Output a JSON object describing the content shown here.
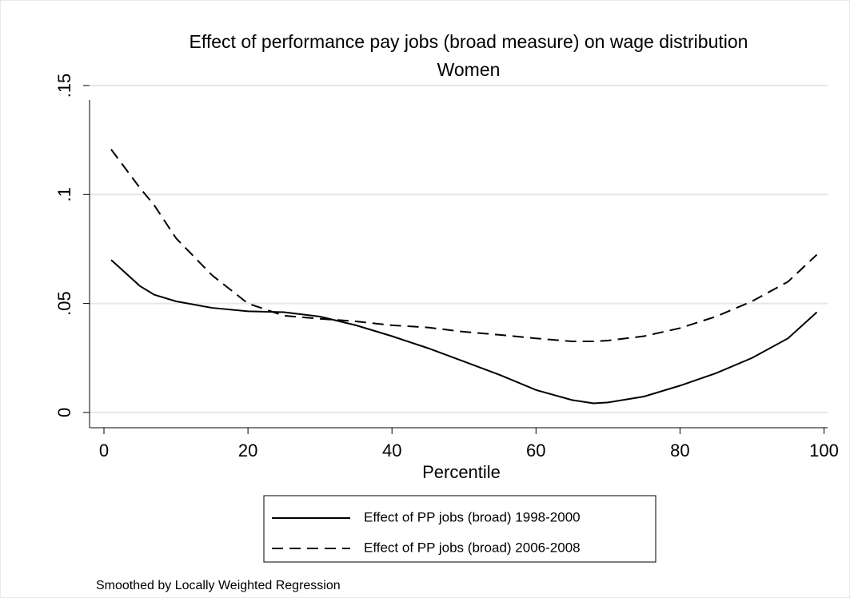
{
  "chart_data": {
    "type": "line",
    "title": "Effect of performance pay jobs (broad measure) on wage distribution",
    "subtitle": "Women",
    "x_label": "Percentile",
    "note": "Smoothed by Locally Weighted Regression",
    "xlim": [
      -2,
      100.5
    ],
    "xticks": [
      0,
      20,
      40,
      60,
      80,
      100
    ],
    "ylim": [
      -0.007,
      0.15
    ],
    "yticks": [
      0,
      {
        "value": 0.05,
        "label": ".05"
      },
      {
        "value": 0.1,
        "label": ".1"
      },
      {
        "value": 0.15,
        "label": ".15"
      }
    ],
    "grid": true,
    "legend": "bottom",
    "x": [
      1,
      5,
      7,
      10,
      15,
      20,
      25,
      30,
      35,
      40,
      45,
      50,
      55,
      60,
      65,
      68,
      70,
      75,
      80,
      85,
      90,
      95,
      99
    ],
    "series": [
      {
        "name": "Effect of PP jobs (broad) 1998-2000",
        "color": "#000000",
        "dash": "solid",
        "values": [
          0.07,
          0.058,
          0.054,
          0.051,
          0.048,
          0.0464,
          0.046,
          0.044,
          0.04,
          0.035,
          0.0295,
          0.0234,
          0.0172,
          0.0103,
          0.0057,
          0.0042,
          0.0046,
          0.0073,
          0.0123,
          0.018,
          0.025,
          0.034,
          0.046
        ]
      },
      {
        "name": "Effect of PP jobs (broad) 2006-2008",
        "color": "#000000",
        "dash": "dashed",
        "values": [
          0.1207,
          0.103,
          0.095,
          0.08,
          0.063,
          0.05,
          0.0444,
          0.043,
          0.0418,
          0.04,
          0.039,
          0.037,
          0.0356,
          0.034,
          0.0326,
          0.0326,
          0.033,
          0.035,
          0.0387,
          0.044,
          0.051,
          0.06,
          0.0724
        ]
      }
    ]
  }
}
